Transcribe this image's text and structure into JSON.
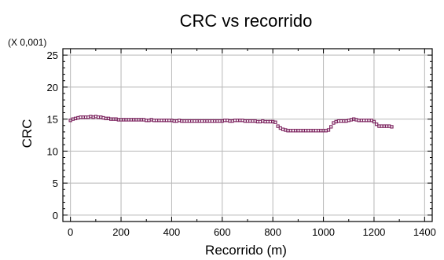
{
  "chart_data": {
    "type": "scatter",
    "title": "CRC vs recorrido",
    "xlabel": "Recorrido (m)",
    "ylabel": "CRC",
    "scale_note": "(X 0,001)",
    "xlim": [
      -30,
      1430
    ],
    "ylim": [
      -1,
      26
    ],
    "xticks": [
      0,
      200,
      400,
      600,
      800,
      1000,
      1200,
      1400
    ],
    "yticks": [
      0,
      5,
      10,
      15,
      20,
      25
    ],
    "grid": true,
    "marker_color": "#7a1f5c",
    "series": [
      {
        "x": [
          0,
          10,
          20,
          30,
          40,
          50,
          60,
          70,
          80,
          90,
          100,
          110,
          120,
          130,
          140,
          150,
          160,
          170,
          180,
          190,
          200,
          210,
          220,
          230,
          240,
          250,
          260,
          270,
          280,
          290,
          300,
          310,
          320,
          330,
          340,
          350,
          360,
          370,
          380,
          390,
          400,
          410,
          420,
          430,
          440,
          450,
          460,
          470,
          480,
          490,
          500,
          510,
          520,
          530,
          540,
          550,
          560,
          570,
          580,
          590,
          600,
          610,
          620,
          630,
          640,
          650,
          660,
          670,
          680,
          690,
          700,
          710,
          720,
          730,
          740,
          750,
          760,
          770,
          780,
          790,
          800,
          810,
          820,
          830,
          840,
          850,
          860,
          870,
          880,
          890,
          900,
          910,
          920,
          930,
          940,
          950,
          960,
          970,
          980,
          990,
          1000,
          1010,
          1020,
          1030,
          1040,
          1050,
          1060,
          1070,
          1080,
          1090,
          1100,
          1110,
          1120,
          1130,
          1140,
          1150,
          1160,
          1170,
          1180,
          1190,
          1200,
          1210,
          1220,
          1230,
          1240,
          1250,
          1260,
          1270
        ],
        "y": [
          14.8,
          15.0,
          15.1,
          15.2,
          15.3,
          15.3,
          15.3,
          15.3,
          15.4,
          15.3,
          15.4,
          15.3,
          15.3,
          15.2,
          15.1,
          15.1,
          15.0,
          15.0,
          15.0,
          14.9,
          14.9,
          14.9,
          14.9,
          14.9,
          14.9,
          14.9,
          14.9,
          14.9,
          14.9,
          14.9,
          14.8,
          14.8,
          14.9,
          14.8,
          14.8,
          14.8,
          14.8,
          14.8,
          14.8,
          14.8,
          14.8,
          14.7,
          14.7,
          14.8,
          14.7,
          14.7,
          14.7,
          14.7,
          14.7,
          14.7,
          14.7,
          14.7,
          14.7,
          14.7,
          14.7,
          14.7,
          14.7,
          14.7,
          14.7,
          14.7,
          14.7,
          14.8,
          14.8,
          14.7,
          14.7,
          14.8,
          14.8,
          14.8,
          14.8,
          14.7,
          14.7,
          14.7,
          14.7,
          14.7,
          14.6,
          14.6,
          14.7,
          14.6,
          14.6,
          14.6,
          14.6,
          14.5,
          13.9,
          13.6,
          13.4,
          13.3,
          13.2,
          13.2,
          13.2,
          13.2,
          13.2,
          13.2,
          13.2,
          13.2,
          13.2,
          13.2,
          13.2,
          13.2,
          13.2,
          13.2,
          13.2,
          13.2,
          13.3,
          13.8,
          14.4,
          14.6,
          14.7,
          14.7,
          14.7,
          14.7,
          14.8,
          14.9,
          15.0,
          14.9,
          14.8,
          14.8,
          14.8,
          14.8,
          14.8,
          14.8,
          14.6,
          14.2,
          13.9,
          13.9,
          13.9,
          13.9,
          13.9,
          13.8
        ]
      }
    ]
  }
}
